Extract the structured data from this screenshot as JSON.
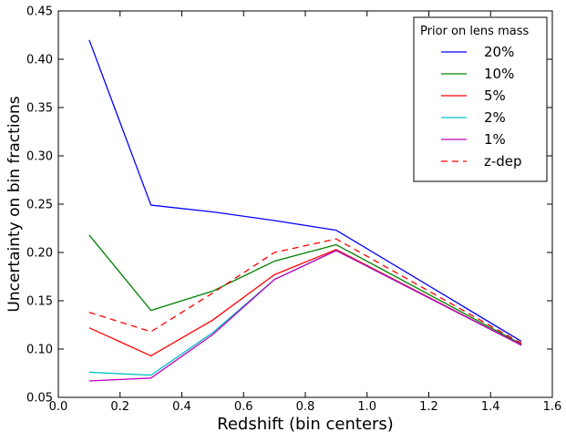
{
  "chart_data": {
    "type": "line",
    "xlabel": "Redshift (bin centers)",
    "ylabel": "Uncertainty on bin fractions",
    "xlim": [
      0.0,
      1.6
    ],
    "ylim": [
      0.05,
      0.45
    ],
    "xticks": [
      "0.0",
      "0.2",
      "0.4",
      "0.6",
      "0.8",
      "1.0",
      "1.2",
      "1.4",
      "1.6"
    ],
    "yticks": [
      "0.05",
      "0.10",
      "0.15",
      "0.20",
      "0.25",
      "0.30",
      "0.35",
      "0.40",
      "0.45"
    ],
    "grid": false,
    "legend": {
      "title": "Prior on lens mass",
      "placement": "top-right"
    },
    "x": [
      0.1,
      0.3,
      0.5,
      0.7,
      0.9,
      1.5
    ],
    "series": [
      {
        "name": "20%",
        "color": "#0000ff",
        "dash": "solid",
        "values": [
          0.42,
          0.249,
          0.242,
          0.233,
          0.223,
          0.108
        ]
      },
      {
        "name": "10%",
        "color": "#008000",
        "dash": "solid",
        "values": [
          0.218,
          0.14,
          0.16,
          0.191,
          0.208,
          0.105
        ]
      },
      {
        "name": "5%",
        "color": "#ff0000",
        "dash": "solid",
        "values": [
          0.122,
          0.093,
          0.13,
          0.177,
          0.203,
          0.104
        ]
      },
      {
        "name": "2%",
        "color": "#00bfbf",
        "dash": "solid",
        "values": [
          0.076,
          0.073,
          0.117,
          0.172,
          0.202,
          0.104
        ]
      },
      {
        "name": "1%",
        "color": "#bf00bf",
        "dash": "solid",
        "values": [
          0.067,
          0.07,
          0.115,
          0.172,
          0.202,
          0.104
        ]
      },
      {
        "name": "z-dep",
        "color": "#ff0000",
        "dash": "dashed",
        "values": [
          0.138,
          0.118,
          0.158,
          0.2,
          0.214,
          0.106
        ]
      }
    ]
  }
}
